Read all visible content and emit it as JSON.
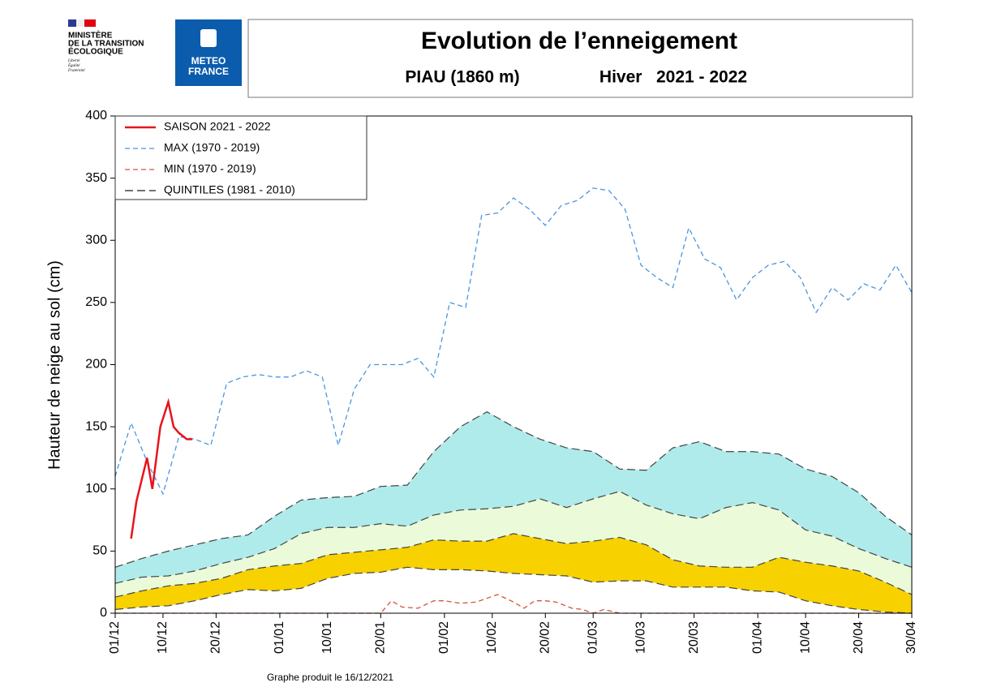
{
  "header": {
    "ministry": [
      "MINISTÈRE",
      "DE LA TRANSITION",
      "ÉCOLOGIQUE"
    ],
    "motto": [
      "Liberté",
      "Égalité",
      "Fraternité"
    ],
    "meteo": [
      "METEO",
      "FRANCE"
    ]
  },
  "chart_data": {
    "type": "line",
    "title": "Evolution de l’enneigement",
    "station": "PIAU (1860 m)",
    "season": "Hiver   2021 - 2022",
    "ylabel": "Hauteur de neige au sol (cm)",
    "footer": "Graphe produit le 16/12/2021",
    "xlim": [
      0,
      150
    ],
    "ylim": [
      0,
      400
    ],
    "yticks": [
      0,
      50,
      100,
      150,
      200,
      250,
      300,
      350,
      400
    ],
    "xticks": [
      {
        "value": 0,
        "label": "01/12"
      },
      {
        "value": 9,
        "label": "10/12"
      },
      {
        "value": 19,
        "label": "20/12"
      },
      {
        "value": 31,
        "label": "01/01"
      },
      {
        "value": 40,
        "label": "10/01"
      },
      {
        "value": 50,
        "label": "20/01"
      },
      {
        "value": 62,
        "label": "01/02"
      },
      {
        "value": 71,
        "label": "10/02"
      },
      {
        "value": 81,
        "label": "20/02"
      },
      {
        "value": 90,
        "label": "01/03"
      },
      {
        "value": 99,
        "label": "10/03"
      },
      {
        "value": 109,
        "label": "20/03"
      },
      {
        "value": 121,
        "label": "01/04"
      },
      {
        "value": 130,
        "label": "10/04"
      },
      {
        "value": 140,
        "label": "20/04"
      },
      {
        "value": 150,
        "label": "30/04"
      }
    ],
    "series": [
      {
        "name": "SAISON 2021 - 2022",
        "color": "#e8141b",
        "dash": "none",
        "width": 2.5,
        "x": [
          3,
          4,
          6,
          7,
          8.5,
          10,
          11,
          12,
          13.5,
          14.5
        ],
        "values": [
          60,
          90,
          125,
          100,
          150,
          170,
          150,
          145,
          140,
          140
        ]
      },
      {
        "name": "MAX (1970 - 2019)",
        "color": "#4a95e0",
        "dash": "6,4",
        "width": 1.3,
        "x": [
          0,
          3,
          6,
          9,
          12,
          15,
          18,
          21,
          24,
          27,
          30,
          33,
          36,
          39,
          42,
          45,
          48,
          51,
          54,
          57,
          60,
          63,
          66,
          69,
          72,
          75,
          78,
          81,
          84,
          87,
          90,
          93,
          96,
          99,
          102,
          105,
          108,
          111,
          114,
          117,
          120,
          123,
          126,
          129,
          132,
          135,
          138,
          141,
          144,
          147,
          150
        ],
        "values": [
          110,
          153,
          122,
          96,
          142,
          140,
          135,
          185,
          190,
          192,
          190,
          190,
          195,
          190,
          135,
          180,
          200,
          200,
          200,
          205,
          190,
          250,
          246,
          320,
          322,
          334,
          325,
          312,
          328,
          332,
          342,
          340,
          325,
          280,
          270,
          262,
          310,
          285,
          278,
          252,
          270,
          280,
          283,
          270,
          242,
          262,
          252,
          265,
          260,
          280,
          258
        ]
      },
      {
        "name": "MIN (1970 - 2019)",
        "color": "#d2553a",
        "dash": "6,4",
        "width": 1.3,
        "x": [
          0,
          50,
          52,
          54,
          57,
          60,
          62,
          65,
          68,
          70,
          72,
          75,
          77,
          79,
          81,
          83,
          86,
          88,
          90,
          92,
          95,
          100,
          150
        ],
        "values": [
          0,
          0,
          10,
          5,
          4,
          10,
          10,
          8,
          9,
          12,
          15,
          9,
          4,
          10,
          10,
          9,
          4,
          3,
          0,
          3,
          0,
          0,
          0
        ]
      }
    ],
    "quintiles": {
      "name": "QUINTILES (1981 - 2010)",
      "color": "#444444",
      "dash": "10,5",
      "band_colors": [
        "#f7d100",
        "#ebfbd9",
        "#afebeb"
      ],
      "x": [
        0,
        5,
        10,
        15,
        20,
        25,
        30,
        35,
        40,
        45,
        50,
        55,
        60,
        65,
        70,
        75,
        80,
        85,
        90,
        95,
        100,
        105,
        110,
        115,
        120,
        125,
        130,
        135,
        140,
        145,
        150
      ],
      "levels": [
        [
          3,
          5,
          6,
          10,
          15,
          19,
          18,
          20,
          28,
          32,
          33,
          37,
          35,
          35,
          34,
          32,
          31,
          30,
          25,
          26,
          26,
          21,
          21,
          21,
          18,
          17,
          10,
          6,
          3,
          1,
          0
        ],
        [
          13,
          18,
          22,
          24,
          28,
          35,
          38,
          40,
          47,
          49,
          51,
          53,
          59,
          58,
          58,
          64,
          60,
          56,
          58,
          61,
          55,
          43,
          38,
          37,
          37,
          45,
          41,
          38,
          34,
          25,
          15
        ],
        [
          24,
          29,
          30,
          34,
          40,
          45,
          52,
          64,
          69,
          69,
          72,
          70,
          79,
          83,
          84,
          86,
          92,
          85,
          92,
          98,
          87,
          80,
          76,
          85,
          89,
          83,
          67,
          62,
          52,
          44,
          37
        ],
        [
          37,
          44,
          50,
          55,
          60,
          63,
          78,
          91,
          93,
          94,
          102,
          103,
          130,
          150,
          162,
          150,
          140,
          133,
          130,
          116,
          115,
          133,
          138,
          130,
          130,
          128,
          116,
          110,
          97,
          78,
          63
        ]
      ]
    }
  }
}
